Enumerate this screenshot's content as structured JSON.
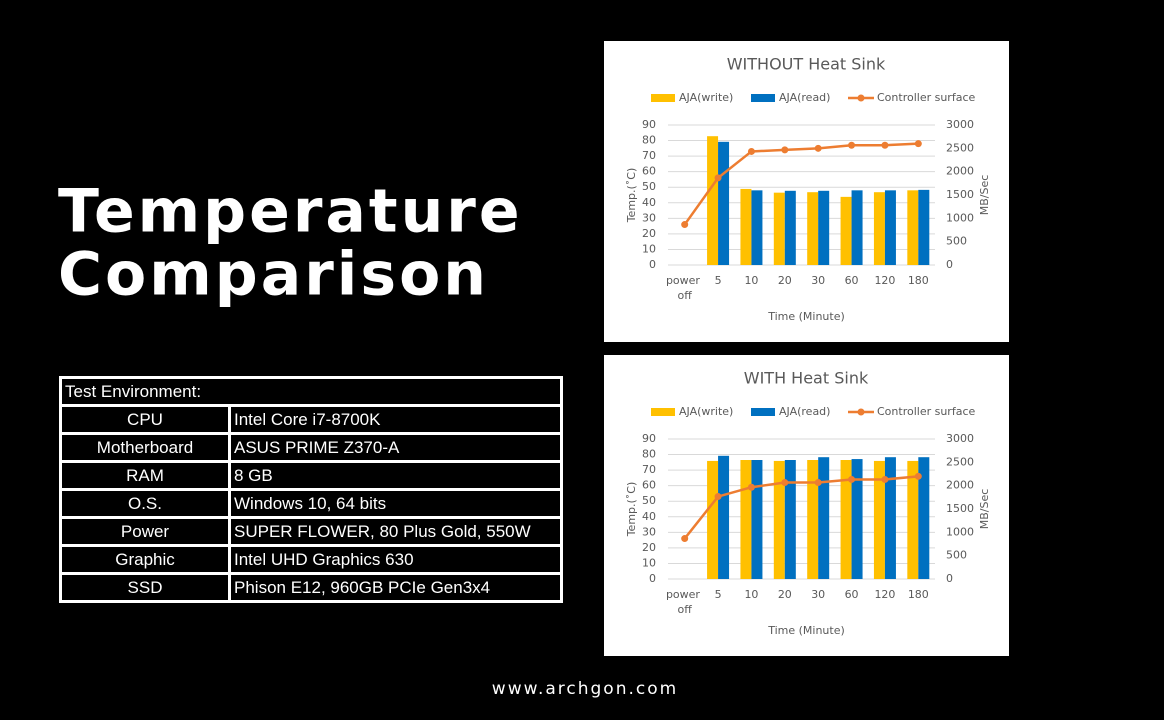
{
  "heading": [
    "Temperature",
    "Comparison"
  ],
  "table": {
    "caption": "Test Environment:",
    "rows": [
      [
        "CPU",
        "Intel Core i7-8700K"
      ],
      [
        "Motherboard",
        "ASUS PRIME Z370-A"
      ],
      [
        "RAM",
        "8 GB"
      ],
      [
        "O.S.",
        "Windows 10, 64 bits"
      ],
      [
        "Power",
        "SUPER FLOWER, 80 Plus Gold, 550W"
      ],
      [
        "Graphic",
        "Intel UHD Graphics 630"
      ],
      [
        "SSD",
        "Phison E12, 960GB PCIe Gen3x4"
      ]
    ]
  },
  "footer": "www.archgon.com",
  "chart_data": [
    {
      "type": "combo",
      "title": "WITHOUT Heat Sink",
      "x_label": "Time (Minute)",
      "y_label": "Temp.(˚C)",
      "y2_label": "MB/Sec",
      "categories": [
        "power off",
        "5",
        "10",
        "20",
        "30",
        "60",
        "120",
        "180"
      ],
      "ylim": [
        0,
        90
      ],
      "yticks": [
        0,
        10,
        20,
        30,
        40,
        50,
        60,
        70,
        80,
        90
      ],
      "y2lim": [
        0,
        3000
      ],
      "y2ticks": [
        0,
        500,
        1000,
        1500,
        2000,
        2500,
        3000
      ],
      "grid": true,
      "legend": "top",
      "series": [
        {
          "name": "AJA(write)",
          "type": "bar",
          "axis": "y2",
          "color": "#ffc000",
          "values": [
            null,
            2760,
            1630,
            1550,
            1560,
            1460,
            1560,
            1600
          ]
        },
        {
          "name": "AJA(read)",
          "type": "bar",
          "axis": "y2",
          "color": "#0070c0",
          "values": [
            null,
            2640,
            1600,
            1590,
            1590,
            1600,
            1600,
            1610
          ]
        },
        {
          "name": "Controller surface",
          "type": "line",
          "axis": "y",
          "color": "#ed7d31",
          "values": [
            26,
            56,
            73,
            74,
            75,
            77,
            77,
            78
          ]
        }
      ]
    },
    {
      "type": "combo",
      "title": "WITH Heat Sink",
      "x_label": "Time (Minute)",
      "y_label": "Temp.(˚C)",
      "y2_label": "MB/Sec",
      "categories": [
        "power off",
        "5",
        "10",
        "20",
        "30",
        "60",
        "120",
        "180"
      ],
      "ylim": [
        0,
        90
      ],
      "yticks": [
        0,
        10,
        20,
        30,
        40,
        50,
        60,
        70,
        80,
        90
      ],
      "y2lim": [
        0,
        3000
      ],
      "y2ticks": [
        0,
        500,
        1000,
        1500,
        2000,
        2500,
        3000
      ],
      "grid": true,
      "legend": "top",
      "series": [
        {
          "name": "AJA(write)",
          "type": "bar",
          "axis": "y2",
          "color": "#ffc000",
          "values": [
            null,
            2530,
            2550,
            2530,
            2550,
            2550,
            2530,
            2530
          ]
        },
        {
          "name": "AJA(read)",
          "type": "bar",
          "axis": "y2",
          "color": "#0070c0",
          "values": [
            null,
            2640,
            2550,
            2550,
            2610,
            2570,
            2610,
            2610
          ]
        },
        {
          "name": "Controller surface",
          "type": "line",
          "axis": "y",
          "color": "#ed7d31",
          "values": [
            26,
            53,
            59,
            62,
            62,
            64,
            64,
            66
          ]
        }
      ]
    }
  ]
}
